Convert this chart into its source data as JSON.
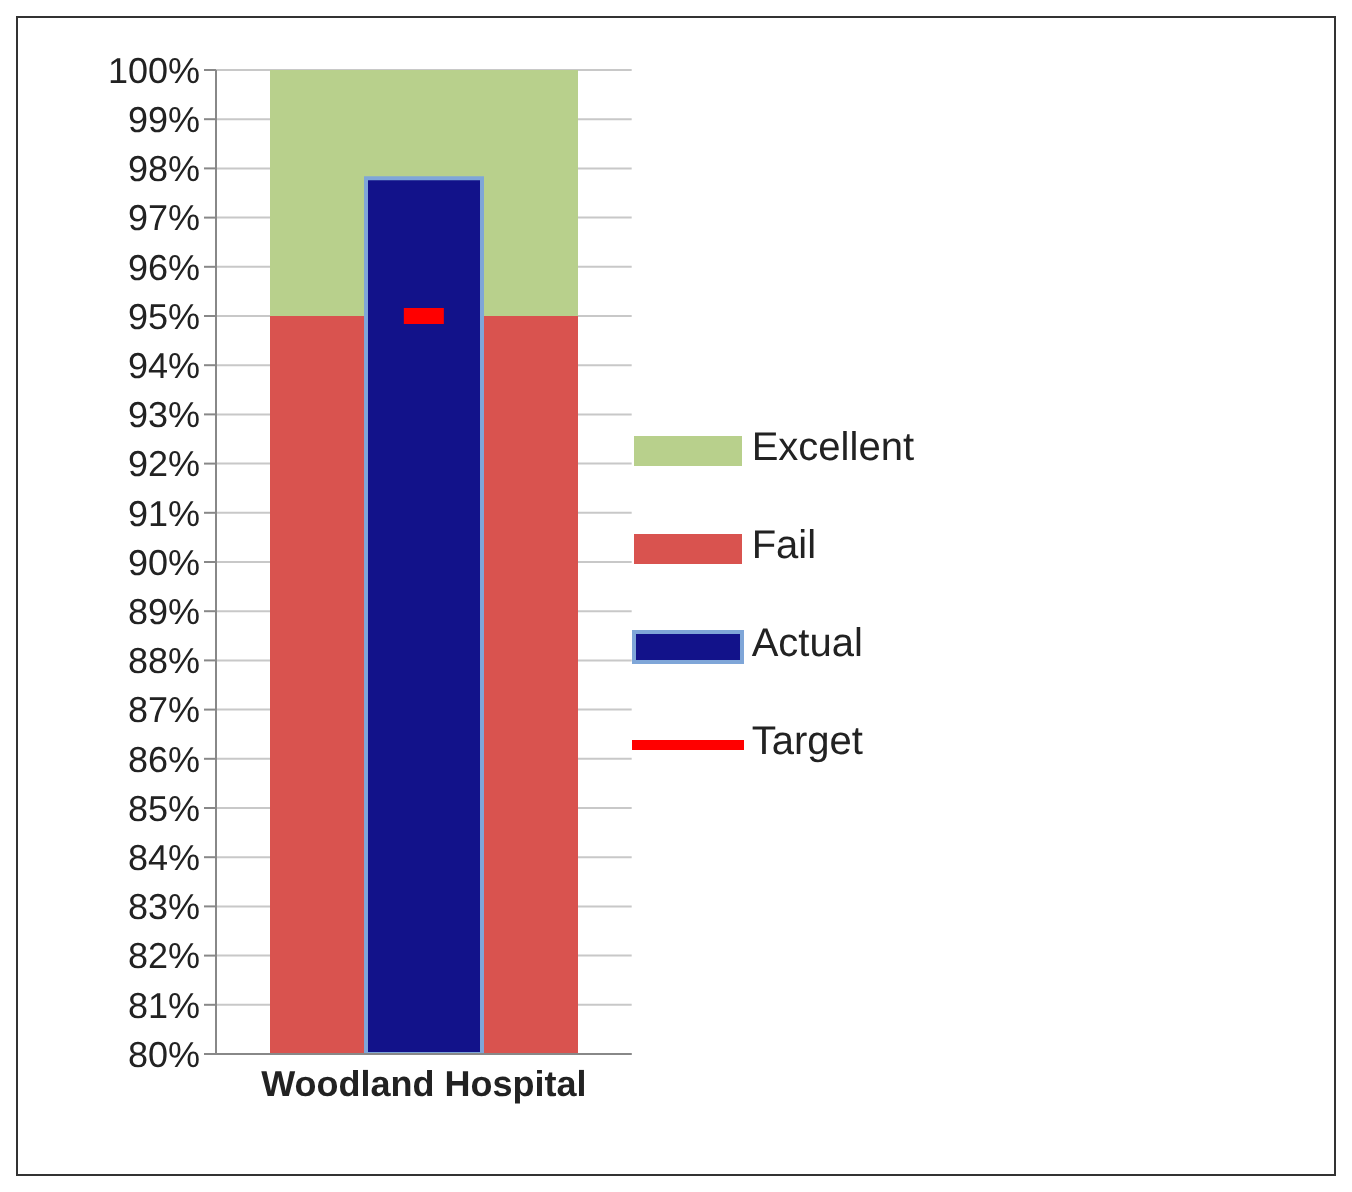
{
  "chart_data": {
    "type": "bar",
    "categories": [
      "Woodland Hospital"
    ],
    "grid": "y",
    "legend": "right",
    "ylim": [
      80,
      100
    ],
    "yticks": [
      {
        "value": 80,
        "label": "80%"
      },
      {
        "value": 81,
        "label": "81%"
      },
      {
        "value": 82,
        "label": "82%"
      },
      {
        "value": 83,
        "label": "83%"
      },
      {
        "value": 84,
        "label": "84%"
      },
      {
        "value": 85,
        "label": "85%"
      },
      {
        "value": 86,
        "label": "86%"
      },
      {
        "value": 87,
        "label": "87%"
      },
      {
        "value": 88,
        "label": "88%"
      },
      {
        "value": 89,
        "label": "89%"
      },
      {
        "value": 90,
        "label": "90%"
      },
      {
        "value": 91,
        "label": "91%"
      },
      {
        "value": 92,
        "label": "92%"
      },
      {
        "value": 93,
        "label": "93%"
      },
      {
        "value": 94,
        "label": "94%"
      },
      {
        "value": 95,
        "label": "95%"
      },
      {
        "value": 96,
        "label": "96%"
      },
      {
        "value": 97,
        "label": "97%"
      },
      {
        "value": 98,
        "label": "98%"
      },
      {
        "value": 99,
        "label": "99%"
      },
      {
        "value": 100,
        "label": "100%"
      }
    ],
    "series": [
      {
        "name": "Fail",
        "color": "#d9534f",
        "values": [
          15
        ],
        "base": [
          80
        ]
      },
      {
        "name": "Excellent",
        "color": "#b8d08c",
        "values": [
          5
        ],
        "base": [
          95
        ]
      },
      {
        "name": "Actual",
        "color": "#12128a",
        "values": [
          97.8
        ]
      },
      {
        "name": "Target",
        "type": "scatter",
        "color": "#ff0000",
        "values": [
          95
        ]
      }
    ]
  }
}
